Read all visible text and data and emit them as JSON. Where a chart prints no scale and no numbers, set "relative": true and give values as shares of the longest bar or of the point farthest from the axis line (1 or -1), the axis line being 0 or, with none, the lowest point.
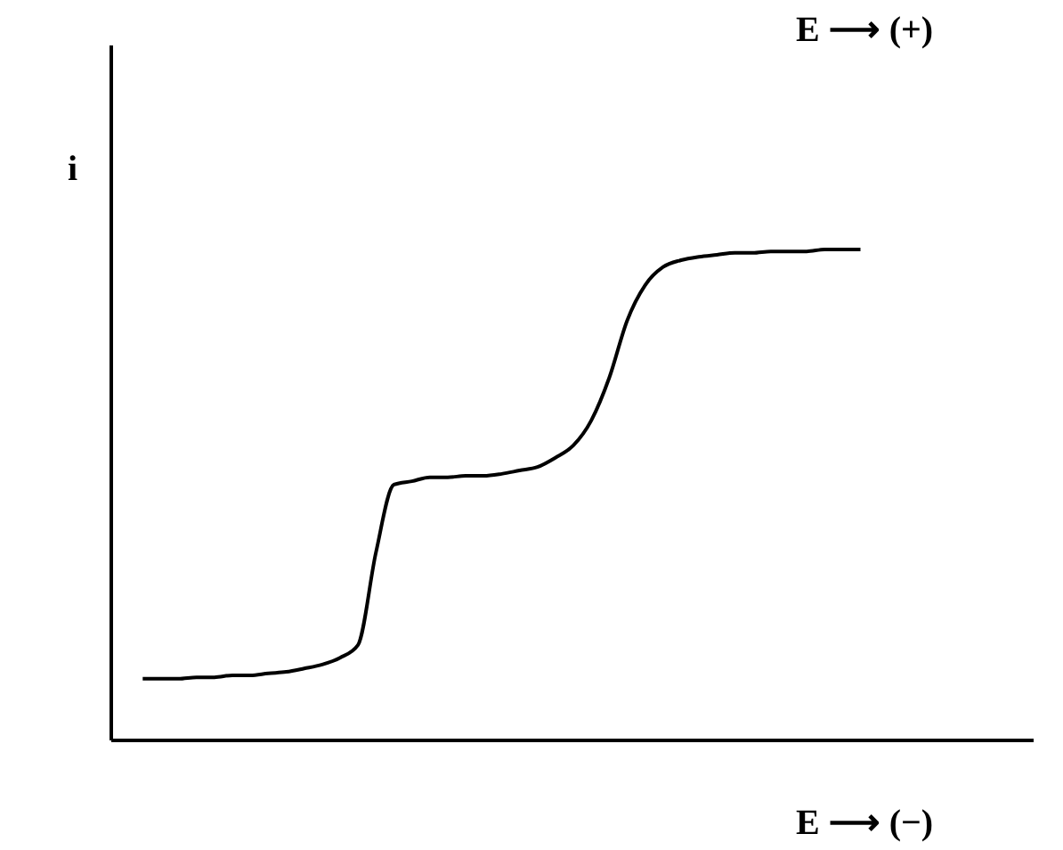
{
  "chart_data": {
    "type": "line",
    "relative": true,
    "xlabel": "E ⟶ (−)",
    "ylabel": "i",
    "annotations": [
      "E ⟶ (+)"
    ],
    "grid": false,
    "marker": "none",
    "line_style": "solid",
    "tick_labels": false,
    "categories": [
      null,
      null,
      null,
      null,
      null,
      null,
      null,
      null,
      null,
      null,
      null,
      null,
      null,
      null,
      null,
      null,
      null,
      null,
      null,
      null,
      null,
      null,
      null,
      null,
      null,
      null,
      null,
      null,
      null,
      null,
      null,
      null,
      null,
      null,
      null,
      null,
      null,
      null,
      null,
      null,
      null
    ],
    "series": [
      {
        "color": "#000000",
        "values": [
          0.124,
          0.124,
          0.124,
          0.127,
          0.127,
          0.131,
          0.131,
          0.135,
          0.138,
          0.145,
          0.153,
          0.167,
          0.193,
          0.382,
          0.52,
          0.527,
          0.535,
          0.535,
          0.538,
          0.538,
          0.542,
          0.549,
          0.556,
          0.575,
          0.6,
          0.651,
          0.738,
          0.855,
          0.927,
          0.964,
          0.978,
          0.985,
          0.989,
          0.993,
          0.993,
          0.996,
          0.996,
          0.996,
          1,
          1,
          1
        ]
      }
    ]
  }
}
